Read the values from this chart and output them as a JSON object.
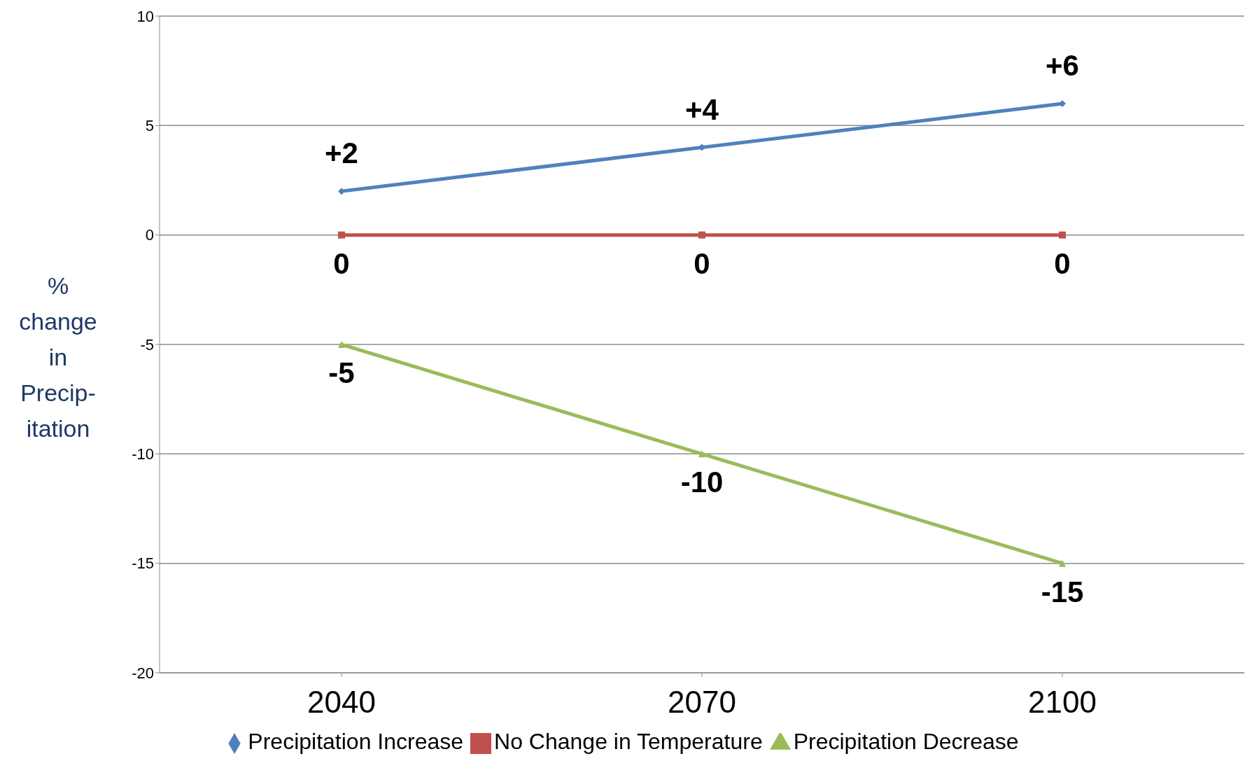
{
  "chart_data": {
    "type": "line",
    "ylabel": "% change in Precip-itation",
    "categories": [
      "2040",
      "2070",
      "2100"
    ],
    "series": [
      {
        "name": "Precipitation Increase",
        "color": "#4f81bd",
        "marker": "diamond",
        "values": [
          2,
          4,
          6
        ],
        "value_labels": [
          "+2",
          "+4",
          "+6"
        ]
      },
      {
        "name": "No Change in Temperature",
        "color": "#c0504d",
        "marker": "square",
        "values": [
          0,
          0,
          0
        ],
        "value_labels": [
          "0",
          "0",
          "0"
        ]
      },
      {
        "name": "Precipitation Decrease",
        "color": "#9bbb59",
        "marker": "triangle",
        "values": [
          -5,
          -10,
          -15
        ],
        "value_labels": [
          "-5",
          "-10",
          "-15"
        ]
      }
    ],
    "ylim": [
      -20,
      10
    ],
    "yticks": [
      -20,
      -15,
      -10,
      -5,
      0,
      5,
      10
    ],
    "grid": "y",
    "legend": "bottom"
  }
}
